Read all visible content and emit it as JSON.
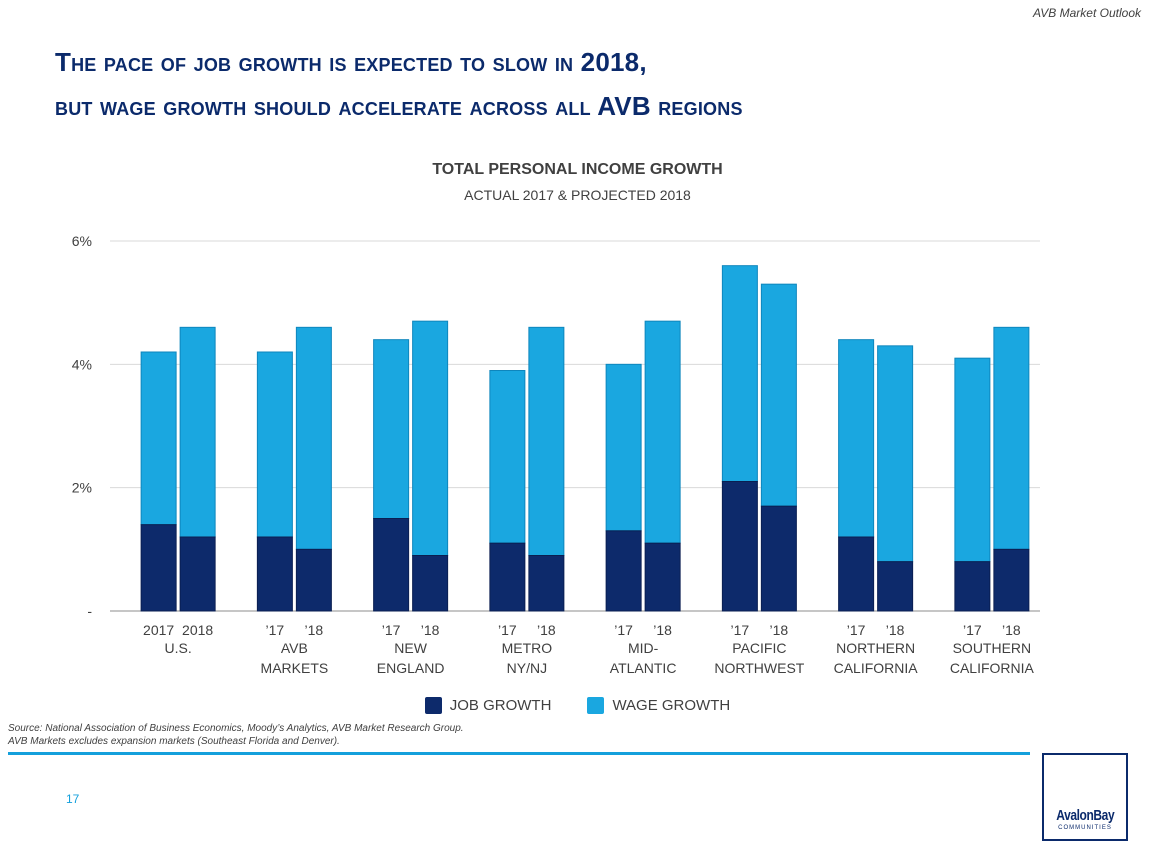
{
  "header": {
    "tag": "AVB Market Outlook"
  },
  "title": {
    "line1": "The pace of job growth is expected to slow in 2018,",
    "line2": "but wage growth should accelerate across all AVB regions"
  },
  "chart_data": {
    "type": "bar",
    "stacked": true,
    "title": "TOTAL PERSONAL INCOME GROWTH",
    "subtitle": "ACTUAL 2017 & PROJECTED 2018",
    "ylim": [
      0,
      6
    ],
    "yticks": [
      {
        "value": 0,
        "label": "-"
      },
      {
        "value": 2,
        "label": "2%"
      },
      {
        "value": 4,
        "label": "4%"
      },
      {
        "value": 6,
        "label": "6%"
      }
    ],
    "grid": true,
    "legend_position": "bottom",
    "groups": [
      {
        "region": [
          "U.S."
        ],
        "years": [
          "2017",
          "2018"
        ],
        "job": [
          1.4,
          1.2
        ],
        "total": [
          4.2,
          4.6
        ]
      },
      {
        "region": [
          "AVB",
          "MARKETS"
        ],
        "years": [
          "’17",
          "’18"
        ],
        "job": [
          1.2,
          1.0
        ],
        "total": [
          4.2,
          4.6
        ]
      },
      {
        "region": [
          "NEW",
          "ENGLAND"
        ],
        "years": [
          "’17",
          "’18"
        ],
        "job": [
          1.5,
          0.9
        ],
        "total": [
          4.4,
          4.7
        ]
      },
      {
        "region": [
          "METRO",
          "NY/NJ"
        ],
        "years": [
          "’17",
          "’18"
        ],
        "job": [
          1.1,
          0.9
        ],
        "total": [
          3.9,
          4.6
        ]
      },
      {
        "region": [
          "MID-",
          "ATLANTIC"
        ],
        "years": [
          "’17",
          "’18"
        ],
        "job": [
          1.3,
          1.1
        ],
        "total": [
          4.0,
          4.7
        ]
      },
      {
        "region": [
          "PACIFIC",
          "NORTHWEST"
        ],
        "years": [
          "’17",
          "’18"
        ],
        "job": [
          2.1,
          1.7
        ],
        "total": [
          5.6,
          5.3
        ]
      },
      {
        "region": [
          "NORTHERN",
          "CALIFORNIA"
        ],
        "years": [
          "’17",
          "’18"
        ],
        "job": [
          1.2,
          0.8
        ],
        "total": [
          4.4,
          4.3
        ]
      },
      {
        "region": [
          "SOUTHERN",
          "CALIFORNIA"
        ],
        "years": [
          "’17",
          "’18"
        ],
        "job": [
          0.8,
          1.0
        ],
        "total": [
          4.1,
          4.6
        ]
      }
    ],
    "series": [
      {
        "name": "JOB GROWTH",
        "color": "#0d2a6b"
      },
      {
        "name": "WAGE GROWTH",
        "color": "#1aa7e0"
      }
    ]
  },
  "footnote": {
    "line1": "Source:  National Association of Business Economics, Moody’s Analytics, AVB Market Research Group.",
    "line2": "AVB Markets excludes expansion markets (Southeast Florida and Denver)."
  },
  "page_number": "17",
  "logo": {
    "name": "AvalonBay",
    "sub": "COMMUNITIES"
  }
}
